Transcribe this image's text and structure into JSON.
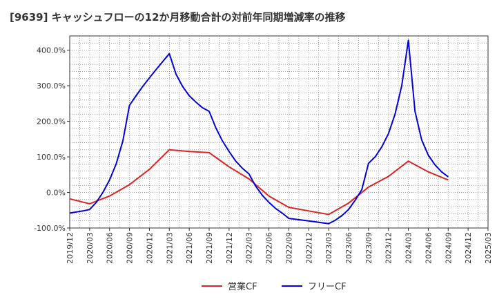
{
  "chart_data": {
    "type": "line",
    "title": "[9639]  キャッシュフローの12か月移動合計の対前年同期増減率の推移",
    "xlabel": "",
    "ylabel": "",
    "ylim": [
      -100,
      440
    ],
    "y_ticks": [
      -100,
      0,
      100,
      200,
      300,
      400
    ],
    "y_tick_labels": [
      "-100.0%",
      "0.0%",
      "100.0%",
      "200.0%",
      "300.0%",
      "400.0%"
    ],
    "x_tick_labels": [
      "2019/12",
      "2020/03",
      "2020/06",
      "2020/09",
      "2020/12",
      "2021/03",
      "2021/06",
      "2021/09",
      "2021/12",
      "2022/03",
      "2022/06",
      "2022/09",
      "2022/12",
      "2023/03",
      "2023/06",
      "2023/09",
      "2023/12",
      "2024/03",
      "2024/06",
      "2024/09",
      "2024/12",
      "2025/03"
    ],
    "x_start": "2019/12",
    "x_months": 63,
    "grid": true,
    "legend_position": "bottom",
    "series": [
      {
        "name": "営業CF",
        "color": "#dd2222",
        "points": [
          [
            "2019/12",
            -18
          ],
          [
            "2020/03",
            -32
          ],
          [
            "2020/06",
            -10
          ],
          [
            "2020/09",
            22
          ],
          [
            "2020/12",
            65
          ],
          [
            "2021/03",
            120
          ],
          [
            "2021/06",
            115
          ],
          [
            "2021/09",
            112
          ],
          [
            "2021/12",
            72
          ],
          [
            "2022/03",
            38
          ],
          [
            "2022/06",
            -10
          ],
          [
            "2022/09",
            -42
          ],
          [
            "2022/12",
            -52
          ],
          [
            "2023/03",
            -62
          ],
          [
            "2023/06",
            -30
          ],
          [
            "2023/09",
            15
          ],
          [
            "2023/12",
            45
          ],
          [
            "2024/03",
            88
          ],
          [
            "2024/06",
            58
          ],
          [
            "2024/09",
            35
          ]
        ]
      },
      {
        "name": "フリーCF",
        "color": "#0000dd",
        "points": [
          [
            "2019/12",
            -58
          ],
          [
            "2020/01",
            -55
          ],
          [
            "2020/02",
            -52
          ],
          [
            "2020/03",
            -48
          ],
          [
            "2020/04",
            -28
          ],
          [
            "2020/05",
            0
          ],
          [
            "2020/06",
            35
          ],
          [
            "2020/07",
            80
          ],
          [
            "2020/08",
            145
          ],
          [
            "2020/09",
            245
          ],
          [
            "2020/10",
            272
          ],
          [
            "2020/11",
            298
          ],
          [
            "2020/12",
            322
          ],
          [
            "2021/01",
            345
          ],
          [
            "2021/02",
            368
          ],
          [
            "2021/03",
            390
          ],
          [
            "2021/04",
            333
          ],
          [
            "2021/05",
            298
          ],
          [
            "2021/06",
            272
          ],
          [
            "2021/07",
            254
          ],
          [
            "2021/08",
            238
          ],
          [
            "2021/09",
            228
          ],
          [
            "2021/10",
            182
          ],
          [
            "2021/11",
            145
          ],
          [
            "2021/12",
            115
          ],
          [
            "2022/01",
            88
          ],
          [
            "2022/02",
            68
          ],
          [
            "2022/03",
            52
          ],
          [
            "2022/04",
            18
          ],
          [
            "2022/05",
            -8
          ],
          [
            "2022/06",
            -28
          ],
          [
            "2022/07",
            -45
          ],
          [
            "2022/08",
            -58
          ],
          [
            "2022/09",
            -73
          ],
          [
            "2022/12",
            -80
          ],
          [
            "2023/03",
            -88
          ],
          [
            "2023/04",
            -78
          ],
          [
            "2023/05",
            -65
          ],
          [
            "2023/06",
            -48
          ],
          [
            "2023/07",
            -22
          ],
          [
            "2023/08",
            8
          ],
          [
            "2023/09",
            82
          ],
          [
            "2023/10",
            100
          ],
          [
            "2023/11",
            128
          ],
          [
            "2023/12",
            165
          ],
          [
            "2024/01",
            220
          ],
          [
            "2024/02",
            300
          ],
          [
            "2024/03",
            428
          ],
          [
            "2024/04",
            228
          ],
          [
            "2024/05",
            148
          ],
          [
            "2024/06",
            105
          ],
          [
            "2024/07",
            78
          ],
          [
            "2024/08",
            58
          ],
          [
            "2024/09",
            44
          ]
        ]
      }
    ]
  }
}
